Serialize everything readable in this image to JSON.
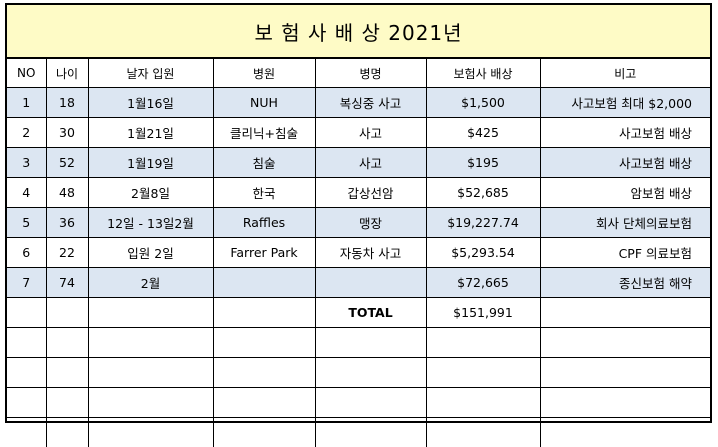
{
  "title": "보 험 사 배 상 2021년",
  "headers": [
    "NO",
    "나이",
    "날자 입원",
    "병원",
    "병명",
    "보험사 배상",
    "비고"
  ],
  "rows": [
    {
      "no": "1",
      "age": "18",
      "date": "1월16일",
      "hospital": "NUH",
      "disease": "복싱중 사고",
      "amount": "$1,500",
      "note": "사고보험 최대 $2,000"
    },
    {
      "no": "2",
      "age": "30",
      "date": "1월21일",
      "hospital": "클리닉+침술",
      "disease": "사고",
      "amount": "$425",
      "note": "사고보험 배상"
    },
    {
      "no": "3",
      "age": "52",
      "date": "1월19일",
      "hospital": "침술",
      "disease": "사고",
      "amount": "$195",
      "note": "사고보험 배상"
    },
    {
      "no": "4",
      "age": "48",
      "date": "2월8일",
      "hospital": "한국",
      "disease": "갑상선암",
      "amount": "$52,685",
      "note": "암보험 배상"
    },
    {
      "no": "5",
      "age": "36",
      "date": "12일 - 13일2월",
      "hospital": "Raffles",
      "disease": "맹장",
      "amount": "$19,227.74",
      "note": "회사 단체의료보험"
    },
    {
      "no": "6",
      "age": "22",
      "date": "입원 2일",
      "hospital": "Farrer Park",
      "disease": "자동차 사고",
      "amount": "$5,293.54",
      "note": "CPF 의료보험"
    },
    {
      "no": "7",
      "age": "74",
      "date": "2월",
      "hospital": "",
      "disease": "",
      "amount": "$72,665",
      "note": "종신보험 해약"
    }
  ],
  "total": {
    "label": "TOTAL",
    "amount": "$151,991"
  },
  "colors": {
    "title_bg": "#fefbc6",
    "row_shade": "#dce6f2"
  }
}
